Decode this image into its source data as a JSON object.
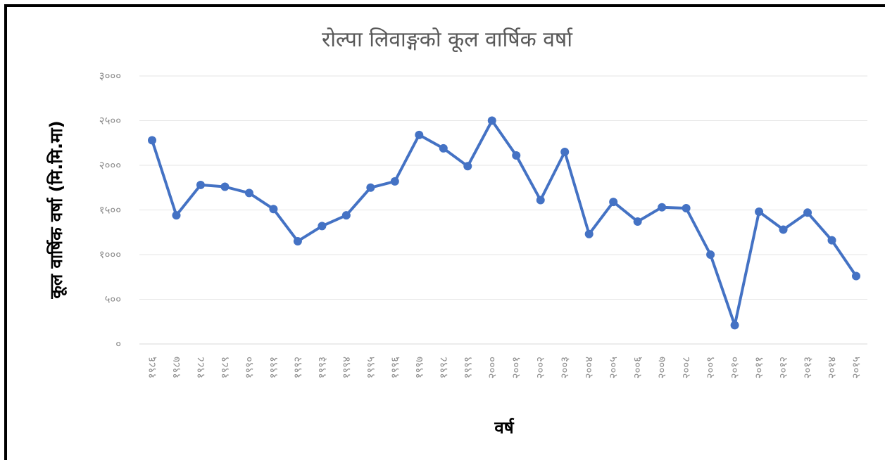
{
  "chart_data": {
    "type": "line",
    "title": "रोल्पा लिवाङ्गको कूल वार्षिक वर्षा",
    "xlabel": "वर्ष",
    "ylabel": "कूल वार्षिक वर्षा (मि.मि.मा)",
    "ylim": [
      0,
      3000
    ],
    "y_ticks": [
      0,
      500,
      1000,
      1500,
      2000,
      2500,
      3000
    ],
    "y_tick_labels": [
      "०",
      "५००",
      "१०००",
      "१५००",
      "२०००",
      "२५००",
      "३०००"
    ],
    "x_tick_labels": [
      "१९८६",
      "१९८७",
      "१९८८",
      "१९८९",
      "१९९०",
      "१९९१",
      "१९९२",
      "१९९३",
      "१९९४",
      "१९९५",
      "१९९६",
      "१९९७",
      "१९९८",
      "१९९९",
      "२०००",
      "२००१",
      "२००२",
      "२००३",
      "२००४",
      "२००५",
      "२००६",
      "२००७",
      "२००८",
      "२००९",
      "२०१०",
      "२०११",
      "२०१२",
      "२०१३",
      "२०१४",
      "२०१५"
    ],
    "x": [
      1986,
      1987,
      1988,
      1989,
      1990,
      1991,
      1992,
      1993,
      1994,
      1995,
      1996,
      1997,
      1998,
      1999,
      2000,
      2001,
      2002,
      2003,
      2004,
      2005,
      2006,
      2007,
      2008,
      2009,
      2010,
      2011,
      2012,
      2013,
      2014,
      2015
    ],
    "series": [
      {
        "values": [
          2280,
          1440,
          1780,
          1760,
          1690,
          1510,
          1150,
          1320,
          1440,
          1750,
          1820,
          2340,
          2190,
          1990,
          2500,
          2110,
          1610,
          2150,
          1230,
          1590,
          1370,
          1530,
          1520,
          1000,
          210,
          1480,
          1280,
          1470,
          1160,
          760
        ]
      }
    ],
    "color": "#4472c4",
    "grid": true,
    "legend": "none"
  }
}
